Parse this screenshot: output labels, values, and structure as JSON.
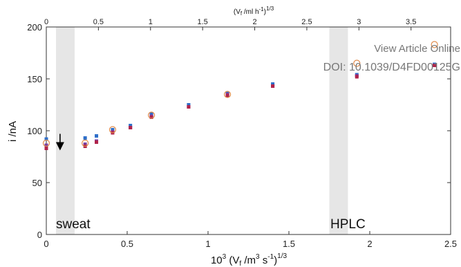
{
  "watermark": {
    "line1": "View Article Online",
    "line2": "DOI: 10.1039/D4FD00125G"
  },
  "colors": {
    "region_shade": "#e6e6e6",
    "blue": "#2e6fc9",
    "purple": "#7a3ea0",
    "crimson": "#b0234a",
    "orange_ring": "#e08a4a",
    "arrow": "#000000"
  },
  "chart_data": {
    "type": "scatter",
    "xlim": [
      0,
      2.5
    ],
    "ylim": [
      0,
      200
    ],
    "x_ticks": [
      0,
      0.5,
      1,
      1.5,
      2,
      2.5
    ],
    "x_tick_labels": [
      "0",
      "0.5",
      "1",
      "1.5",
      "2",
      "2.5"
    ],
    "y_ticks": [
      0,
      50,
      100,
      150,
      200
    ],
    "y_tick_labels": [
      "0",
      "50",
      "100",
      "150",
      "200"
    ],
    "top_axis": {
      "ticks": [
        0,
        0.5,
        1,
        1.5,
        2,
        2.5,
        3,
        3.5
      ],
      "tick_labels": [
        "0",
        "0.5",
        "1",
        "1.5",
        "2",
        "2.5",
        "3",
        "3.5"
      ],
      "xlim": [
        0,
        3.88
      ],
      "label": "(V",
      "label_sub": "f",
      "label_rest": " /ml h",
      "label_sup1": "-1",
      "label_close": ")",
      "label_sup2": "1/3"
    },
    "xlabel": {
      "base": "10",
      "base_sup": "3",
      "mid": " (V",
      "mid_sub": "f",
      "unit": " /m",
      "unit_sup": "3",
      "unit2": " s",
      "unit2_sup": "-1",
      "close": ")",
      "close_sup": "1/3"
    },
    "ylabel": "i /nA",
    "grid": false,
    "regions": [
      {
        "label": "sweat",
        "x0": 0.06,
        "x1": 0.175
      },
      {
        "label": "HPLC",
        "x0": 1.75,
        "x1": 1.865
      }
    ],
    "annotation": {
      "type": "down-arrow",
      "x": 0.085,
      "y_from": 97,
      "y_to": 83
    },
    "series": [
      {
        "marker": "square-blue",
        "x": [
          0,
          0.24,
          0.31,
          0.41,
          0.52,
          0.65,
          0.88,
          1.12,
          1.4,
          1.92,
          2.4
        ],
        "y": [
          92,
          93,
          95,
          101,
          105,
          116,
          125,
          136,
          145,
          154,
          164
        ]
      },
      {
        "marker": "square-purple",
        "x": [
          0,
          0.24,
          0.31,
          0.41,
          0.52,
          0.65,
          0.88,
          1.12,
          1.4,
          1.92,
          2.4
        ],
        "y": [
          86,
          87,
          90,
          99,
          103,
          114,
          123,
          135,
          143,
          153,
          163
        ]
      },
      {
        "marker": "square-crimson",
        "x": [
          0,
          0.24,
          0.31,
          0.41,
          0.52,
          0.65,
          0.88,
          1.12,
          1.4,
          1.92,
          2.4
        ],
        "y": [
          83,
          85,
          89,
          98,
          103,
          113,
          123,
          134,
          143,
          152,
          163
        ]
      },
      {
        "marker": "ring-orange",
        "x": [
          0,
          0.24,
          0.41,
          0.65,
          1.12,
          1.92,
          2.4
        ],
        "y": [
          88,
          88,
          101,
          115,
          135,
          165,
          183
        ]
      }
    ]
  }
}
